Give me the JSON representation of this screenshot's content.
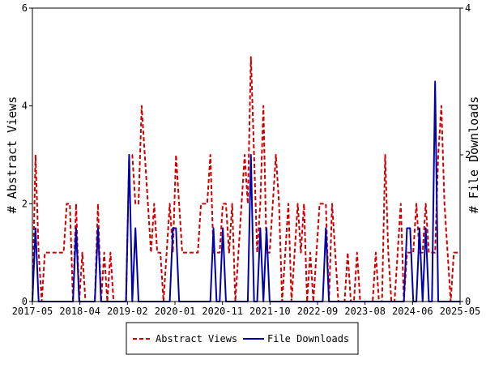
{
  "chart_data": {
    "type": "line",
    "title": "",
    "y_left": {
      "label": "# Abstract Views",
      "range": [
        0,
        6
      ],
      "ticks": [
        "0",
        "2",
        "4",
        "6"
      ]
    },
    "y_right": {
      "label": "# File Downloads",
      "range": [
        0,
        4
      ],
      "ticks": [
        "0",
        "2",
        "4"
      ]
    },
    "x_ticks": [
      "2017-05",
      "2018-04",
      "2019-02",
      "2020-01",
      "2020-11",
      "2021-10",
      "2022-09",
      "2023-08",
      "2024-06",
      "2025-05"
    ],
    "grid": false,
    "legend": {
      "position": "bottom-center"
    },
    "series": [
      {
        "name": "Abstract Views",
        "axis": "left",
        "color": "#cc0000",
        "style": "dashed",
        "values": [
          0,
          3,
          1,
          0,
          1,
          1,
          1,
          1,
          1,
          1,
          1,
          2,
          2,
          0,
          2,
          0,
          1,
          0,
          0,
          0,
          0,
          2,
          0,
          1,
          0,
          1,
          0,
          0,
          0,
          0,
          0,
          3,
          3,
          2,
          2,
          4,
          3,
          2,
          1,
          2,
          1,
          1,
          0,
          1,
          2,
          1,
          3,
          2,
          1,
          1,
          1,
          1,
          1,
          1,
          2,
          2,
          2,
          3,
          1,
          1,
          1,
          2,
          2,
          1,
          2,
          0,
          1,
          2,
          3,
          2,
          5,
          3,
          1,
          2,
          4,
          1,
          1,
          2,
          3,
          2,
          0,
          1,
          2,
          0,
          1,
          2,
          1,
          2,
          0,
          1,
          0,
          1,
          2,
          2,
          2,
          0,
          2,
          1,
          0,
          0,
          0,
          1,
          0,
          0,
          1,
          0,
          0,
          0,
          0,
          0,
          1,
          0,
          0,
          3,
          1,
          0,
          0,
          1,
          2,
          0,
          1,
          1,
          1,
          2,
          1,
          1,
          2,
          1,
          1,
          1,
          3,
          4,
          2,
          1,
          0,
          1,
          1,
          1
        ]
      },
      {
        "name": "File Downloads",
        "axis": "right",
        "color": "#0000aa",
        "style": "solid",
        "values": [
          0,
          1,
          0,
          0,
          0,
          0,
          0,
          0,
          0,
          0,
          0,
          0,
          0,
          0,
          1,
          0,
          0,
          0,
          0,
          0,
          0,
          1,
          0,
          0,
          0,
          0,
          0,
          0,
          0,
          0,
          0,
          2,
          0,
          1,
          0,
          0,
          0,
          0,
          0,
          0,
          0,
          0,
          0,
          0,
          0,
          1,
          1,
          0,
          0,
          0,
          0,
          0,
          0,
          0,
          0,
          0,
          0,
          0,
          1,
          0,
          0,
          1,
          0,
          0,
          0,
          0,
          0,
          0,
          0,
          0,
          2,
          0,
          0,
          1,
          0,
          1,
          0,
          0,
          0,
          0,
          0,
          0,
          0,
          0,
          0,
          0,
          0,
          0,
          0,
          0,
          0,
          0,
          0,
          0,
          1,
          0,
          0,
          0,
          0,
          0,
          0,
          0,
          0,
          0,
          0,
          0,
          0,
          0,
          0,
          0,
          0,
          0,
          0,
          0,
          0,
          0,
          0,
          0,
          0,
          0,
          1,
          1,
          0,
          0,
          1,
          0,
          1,
          0,
          0,
          3,
          0,
          0,
          0,
          0,
          0,
          0,
          0,
          0
        ]
      }
    ]
  }
}
